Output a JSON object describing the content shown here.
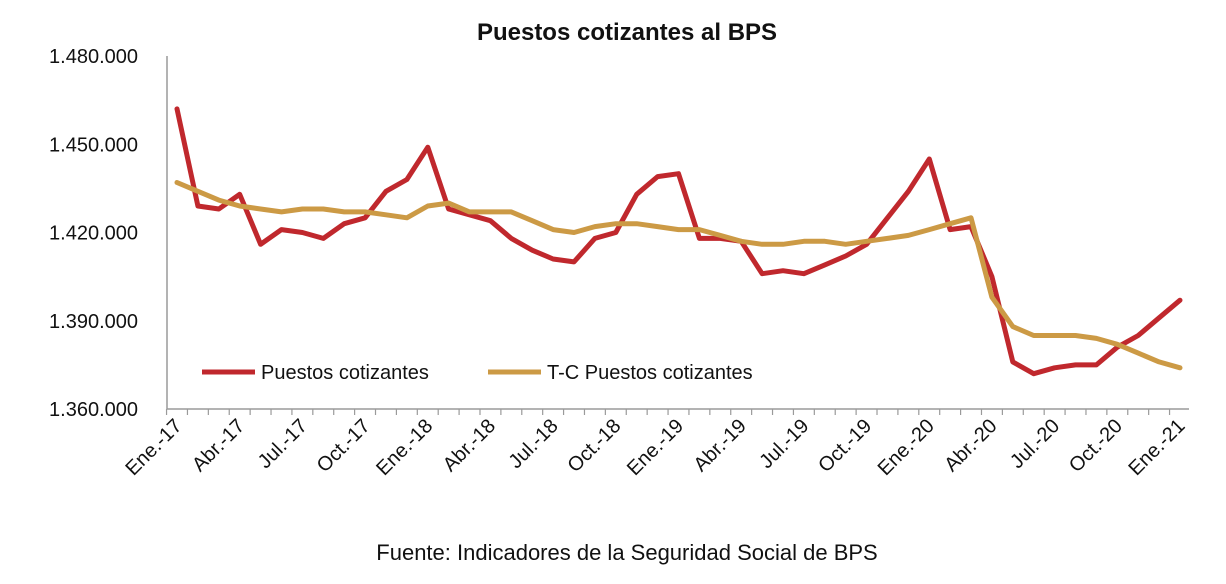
{
  "chart_data": {
    "type": "line",
    "title": "Puestos cotizantes al BPS",
    "source": "Fuente: Indicadores de la Seguridad Social de BPS",
    "ylim": [
      1360000,
      1480000
    ],
    "y_ticks": [
      1360000,
      1390000,
      1420000,
      1450000,
      1480000
    ],
    "y_tick_labels": [
      "1.360.000",
      "1.390.000",
      "1.420.000",
      "1.450.000",
      "1.480.000"
    ],
    "x_categories": [
      "Ene.-17",
      "Feb.-17",
      "Mar.-17",
      "Abr.-17",
      "May.-17",
      "Jun.-17",
      "Jul.-17",
      "Ago.-17",
      "Sep.-17",
      "Oct.-17",
      "Nov.-17",
      "Dic.-17",
      "Ene.-18",
      "Feb.-18",
      "Mar.-18",
      "Abr.-18",
      "May.-18",
      "Jun.-18",
      "Jul.-18",
      "Ago.-18",
      "Sep.-18",
      "Oct.-18",
      "Nov.-18",
      "Dic.-18",
      "Ene.-19",
      "Feb.-19",
      "Mar.-19",
      "Abr.-19",
      "May.-19",
      "Jun.-19",
      "Jul.-19",
      "Ago.-19",
      "Sep.-19",
      "Oct.-19",
      "Nov.-19",
      "Dic.-19",
      "Ene.-20",
      "Feb.-20",
      "Mar.-20",
      "Abr.-20",
      "May.-20",
      "Jun.-20",
      "Jul.-20",
      "Ago.-20",
      "Sep.-20",
      "Oct.-20",
      "Nov.-20",
      "Dic.-20",
      "Ene.-21"
    ],
    "x_tick_labels": [
      "Ene.-17",
      "Abr.-17",
      "Jul.-17",
      "Oct.-17",
      "Ene.-18",
      "Abr.-18",
      "Jul.-18",
      "Oct.-18",
      "Ene.-19",
      "Abr.-19",
      "Jul.-19",
      "Oct.-19",
      "Ene.-20",
      "Abr.-20",
      "Jul.-20",
      "Oct.-20",
      "Ene.-21"
    ],
    "legend_position": "bottom-left",
    "grid": false,
    "series": [
      {
        "name": "Puestos cotizantes",
        "color": "#c0282d",
        "values": [
          1462000,
          1429000,
          1428000,
          1433000,
          1416000,
          1421000,
          1420000,
          1418000,
          1423000,
          1425000,
          1434000,
          1438000,
          1449000,
          1428000,
          1426000,
          1424000,
          1418000,
          1414000,
          1411000,
          1410000,
          1418000,
          1420000,
          1433000,
          1439000,
          1440000,
          1418000,
          1418000,
          1417000,
          1406000,
          1407000,
          1406000,
          1409000,
          1412000,
          1416000,
          1425000,
          1434000,
          1445000,
          1421000,
          1422000,
          1405000,
          1376000,
          1372000,
          1374000,
          1375000,
          1375000,
          1381000,
          1385000,
          1391000,
          1397000
        ]
      },
      {
        "name": "T-C Puestos cotizantes",
        "color": "#cc9a45",
        "values": [
          1437000,
          1434000,
          1431000,
          1429000,
          1428000,
          1427000,
          1428000,
          1428000,
          1427000,
          1427000,
          1426000,
          1425000,
          1429000,
          1430000,
          1427000,
          1427000,
          1427000,
          1424000,
          1421000,
          1420000,
          1422000,
          1423000,
          1423000,
          1422000,
          1421000,
          1421000,
          1419000,
          1417000,
          1416000,
          1416000,
          1417000,
          1417000,
          1416000,
          1417000,
          1418000,
          1419000,
          1421000,
          1423000,
          1425000,
          1398000,
          1388000,
          1385000,
          1385000,
          1385000,
          1384000,
          1382000,
          1379000,
          1376000,
          1374000
        ]
      }
    ]
  }
}
